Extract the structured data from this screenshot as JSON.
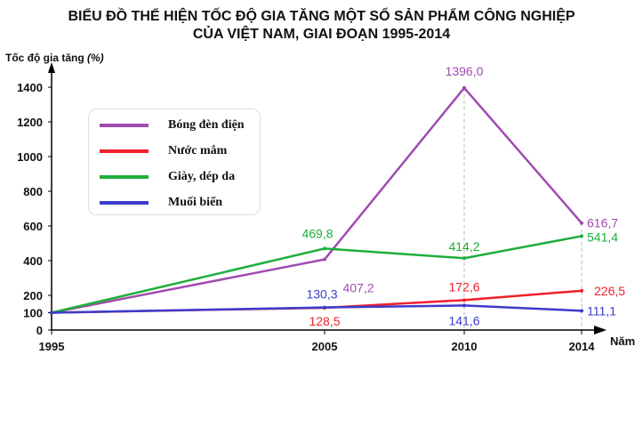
{
  "chart_data": {
    "type": "line",
    "title": "BIỂU ĐỒ THỂ HIỆN TỐC ĐỘ GIA TĂNG MỘT SỐ SẢN PHẨM CÔNG NGHIỆP",
    "subtitle": "CỦA VIỆT NAM, GIAI ĐOẠN 1995-2014",
    "ylabel": "Tốc độ gia tăng",
    "ylabel_unit": "(%)",
    "xlabel": "Năm",
    "x": [
      1995,
      2005,
      2010,
      2014
    ],
    "x_tick_labels": [
      "1995",
      "2005",
      "2010",
      "2014"
    ],
    "y_ticks": [
      0,
      100,
      200,
      400,
      600,
      800,
      1000,
      1200,
      1400
    ],
    "y_tick_labels": [
      "0",
      "100",
      "200",
      "400",
      "600",
      "800",
      "1000",
      "1200",
      "1400"
    ],
    "ylim": [
      0,
      1400
    ],
    "legend_position": "top-left",
    "series": [
      {
        "name": "Bóng đèn điện",
        "color": "#a04bb0",
        "values": [
          100,
          407.2,
          1396.0,
          616.7
        ],
        "labels": [
          "",
          "407,2",
          "1396,0",
          "616,7"
        ]
      },
      {
        "name": "Nước mắm",
        "color": "#f0202a",
        "values": [
          100,
          128.5,
          172.6,
          226.5
        ],
        "labels": [
          "",
          "128,5",
          "172,6",
          "226,5"
        ]
      },
      {
        "name": "Giày, dép da",
        "color": "#1eae3c",
        "values": [
          100,
          469.8,
          414.2,
          541.4
        ],
        "labels": [
          "",
          "469,8",
          "414,2",
          "541,4"
        ]
      },
      {
        "name": "Muối biển",
        "color": "#3c3ccc",
        "values": [
          100,
          130.3,
          141.6,
          111.1
        ],
        "labels": [
          "",
          "130,3",
          "141,6",
          "111,1"
        ]
      }
    ]
  }
}
